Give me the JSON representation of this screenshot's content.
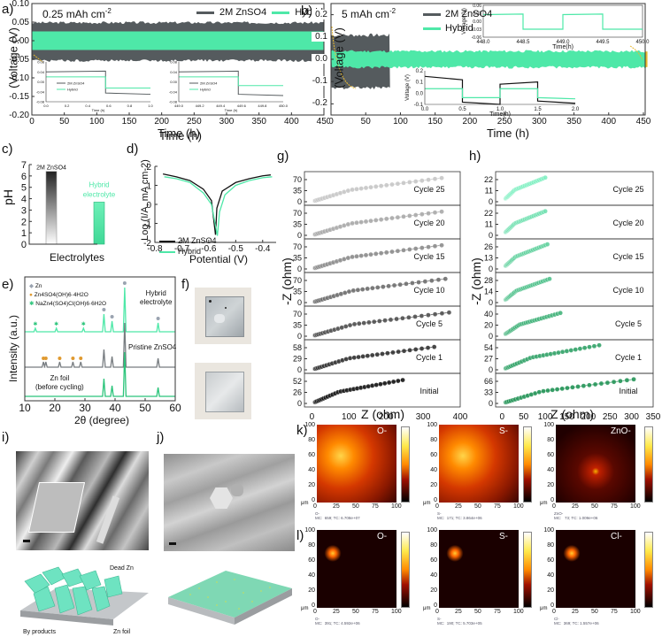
{
  "figure": {
    "panels": {
      "a": {
        "label": "a)",
        "annotation": "0.25 mAh cm",
        "annotation_sup": "-2",
        "legend": [
          "2M ZnSO4",
          "Hybrid"
        ],
        "xlabel": "Time (h)",
        "ylabel": "(Voltage (V)",
        "inset1_legend": [
          "2M ZnSO4",
          "Hybrid"
        ],
        "inset1_xlabel": "Time (h)",
        "inset1_ylabel": "Voltage (V)",
        "inset2_legend": [
          "2M ZnSO4",
          "Hybrid"
        ],
        "inset2_xlabel": "Time (h)",
        "inset2_ylabel": "Voltage (V)"
      },
      "b": {
        "label": "b)",
        "annotation": "5 mAh cm",
        "annotation_sup": "-2",
        "legend": [
          "2M ZnSO4",
          "Hybrid"
        ],
        "xlabel": "Time (h)",
        "ylabel": "(Voltage (V)",
        "inset_top_xlabel": "Time(h)",
        "inset_top_ylabel": "Voltage (V)",
        "inset_bottom_xlabel": "Time(h)",
        "inset_bottom_ylabel": "Voltage (V)"
      },
      "c": {
        "label": "c)",
        "xlabel": "Electrolytes",
        "ylabel": "pH",
        "bar_labels": [
          "2M ZnSO4",
          "Hybrid",
          "electrolyte"
        ]
      },
      "d": {
        "label": "d)",
        "xlabel": "Potential (V)",
        "ylabel": "Log (I/A, mA cm-2)",
        "legend": [
          "2M ZnSO4",
          "Hybrid"
        ]
      },
      "e": {
        "label": "e)",
        "xlabel": "2θ (degree)",
        "ylabel": "Intensity (a.u.)",
        "legend": [
          "Zn",
          "Zn4SO4(OH)6·4H2O",
          "NaZn4(SO4)Cl(OH)6·6H2O"
        ],
        "trace_labels": [
          "Hybrid",
          "electrolyte",
          "Pristine ZnSO4",
          "Zn foil",
          "(before cycling)"
        ]
      },
      "f": {
        "label": "f)"
      },
      "g": {
        "label": "g)",
        "xlabel": "Z (ohm)",
        "ylabel": "-Z (ohm)"
      },
      "h": {
        "label": "h)",
        "xlabel": "Z (ohm)",
        "ylabel": "-Z (ohm)"
      },
      "i": {
        "label": "i)",
        "annotations": [
          "Dead Zn",
          "By products",
          "Zn foil"
        ]
      },
      "j": {
        "label": "j)"
      },
      "k": {
        "label": "k)",
        "maps": [
          {
            "ion": "O-",
            "footer": "MC:  659; TC: 6.708e+07"
          },
          {
            "ion": "S-",
            "footer": "MC:  171; TC: 3.864e+06"
          },
          {
            "ion": "ZnO-",
            "footer": "MC:   73; TC: 1.009e+06"
          }
        ]
      },
      "l": {
        "label": "l)",
        "maps": [
          {
            "ion": "O-",
            "footer": "MC:  391; TC: 4.592e+06"
          },
          {
            "ion": "S-",
            "footer": "MC:  190; TC: 5.703e+05"
          },
          {
            "ion": "Cl-",
            "footer": "MC:  369; TC: 1.557e+06"
          }
        ]
      },
      "sims_axis": {
        "unit": "μm",
        "ticks": [
          "0",
          "25",
          "50",
          "75",
          "100"
        ],
        "yticks": [
          "0",
          "20",
          "40",
          "60",
          "80",
          "100"
        ]
      }
    },
    "colors": {
      "zn": "#555b5e",
      "hybrid": "#4ee8a8",
      "hybrid_dark": "#2d9e6a",
      "arrow": "#e8b830"
    }
  },
  "chart_data": [
    {
      "id": "a",
      "type": "line",
      "title": "0.25 mAh cm-2",
      "xlabel": "Time (h)",
      "ylabel": "Voltage (V)",
      "xlim": [
        0,
        450
      ],
      "ylim": [
        -0.2,
        0.1
      ],
      "xticks": [
        0,
        50,
        100,
        150,
        200,
        250,
        300,
        350,
        400,
        450
      ],
      "yticks": [
        -0.2,
        -0.15,
        -0.1,
        -0.05,
        0.0,
        0.05,
        0.1
      ],
      "series": [
        {
          "name": "2M ZnSO4",
          "band": [
            -0.05,
            0.045
          ]
        },
        {
          "name": "Hybrid",
          "band": [
            -0.025,
            0.025
          ]
        }
      ],
      "insets": [
        {
          "xlim": [
            0.0,
            1.0
          ],
          "xticks": [
            0.0,
            0.2,
            0.4,
            0.6,
            0.8,
            1.0
          ],
          "ylim": [
            -0.08,
            0.08
          ],
          "yticks": [
            -0.08,
            -0.04,
            0.0,
            0.04,
            0.08
          ],
          "series": [
            {
              "name": "2M ZnSO4",
              "upper": 0.04,
              "lower": -0.045
            },
            {
              "name": "Hybrid",
              "upper": 0.02,
              "lower": -0.025
            }
          ]
        },
        {
          "xlim": [
            449.0,
            450.0
          ],
          "xticks": [
            449.0,
            449.2,
            449.4,
            449.6,
            449.8,
            450.0
          ],
          "ylim": [
            -0.08,
            0.08
          ],
          "yticks": [
            -0.08,
            -0.04,
            0.0,
            0.04,
            0.08
          ],
          "series": [
            {
              "name": "2M ZnSO4",
              "upper": 0.04,
              "lower": -0.05
            },
            {
              "name": "Hybrid",
              "upper": 0.02,
              "lower": -0.015
            }
          ]
        }
      ]
    },
    {
      "id": "b",
      "type": "line",
      "title": "5 mAh cm-2",
      "xlabel": "Time (h)",
      "ylabel": "Voltage (V)",
      "xlim": [
        0,
        450
      ],
      "ylim": [
        -0.25,
        0.25
      ],
      "xticks": [
        0,
        50,
        100,
        150,
        200,
        250,
        300,
        350,
        400,
        450
      ],
      "yticks": [
        -0.2,
        -0.1,
        0.0,
        0.1,
        0.2
      ],
      "series": [
        {
          "name": "2M ZnSO4",
          "band": [
            -0.12,
            0.1
          ],
          "end_time": 85
        },
        {
          "name": "Hybrid",
          "band": [
            -0.03,
            0.03
          ],
          "end_time": 455
        }
      ],
      "insets": [
        {
          "xlim": [
            448.0,
            450.0
          ],
          "xticks": [
            448.0,
            448.5,
            449.0,
            449.5,
            450.0
          ],
          "ylim": [
            -0.06,
            0.06
          ],
          "yticks": [
            -0.06,
            -0.03,
            0.0,
            0.03,
            0.06
          ],
          "series": [
            {
              "name": "Hybrid",
              "upper": 0.025,
              "lower": -0.03
            }
          ]
        },
        {
          "xlim": [
            0.0,
            2.0
          ],
          "xticks": [
            0.0,
            0.5,
            1.0,
            1.5,
            2.0
          ],
          "ylim": [
            -0.1,
            0.2
          ],
          "yticks": [
            -0.1,
            0.0,
            0.1,
            0.2
          ],
          "series": [
            {
              "name": "2M ZnSO4",
              "upper": 0.12,
              "lower": -0.1
            },
            {
              "name": "Hybrid",
              "upper": 0.04,
              "lower": -0.04
            }
          ]
        }
      ]
    },
    {
      "id": "c",
      "type": "bar",
      "categories": [
        "2M ZnSO4",
        "Hybrid electrolyte"
      ],
      "values": [
        6.4,
        3.7
      ],
      "xlabel": "Electrolytes",
      "ylabel": "pH",
      "ylim": [
        0,
        7
      ],
      "yticks": [
        0,
        1,
        2,
        3,
        4,
        5,
        6,
        7
      ]
    },
    {
      "id": "d",
      "type": "line",
      "xlabel": "Potential (V)",
      "ylabel": "Log (I/A, mA cm-2)",
      "xlim": [
        -0.8,
        -0.35
      ],
      "ylim": [
        -2,
        2
      ],
      "xticks": [
        -0.8,
        -0.7,
        -0.6,
        -0.5,
        -0.4
      ],
      "yticks": [
        -2,
        -1,
        0,
        1,
        2
      ],
      "series": [
        {
          "name": "2M ZnSO4",
          "x": [
            -0.77,
            -0.72,
            -0.67,
            -0.62,
            -0.59,
            -0.575,
            -0.57,
            -0.55,
            -0.5,
            -0.45,
            -0.4,
            -0.37
          ],
          "y": [
            1.6,
            1.45,
            1.25,
            0.8,
            0.2,
            -1.6,
            -0.2,
            0.7,
            1.15,
            1.35,
            1.5,
            1.55
          ]
        },
        {
          "name": "Hybrid",
          "x": [
            -0.765,
            -0.72,
            -0.67,
            -0.62,
            -0.59,
            -0.568,
            -0.56,
            -0.54,
            -0.5,
            -0.45,
            -0.4,
            -0.365
          ],
          "y": [
            1.45,
            1.35,
            1.15,
            0.6,
            0.0,
            -1.65,
            -0.4,
            0.5,
            1.0,
            1.25,
            1.4,
            1.45
          ]
        }
      ]
    },
    {
      "id": "e",
      "type": "line",
      "xlabel": "2θ (degree)",
      "ylabel": "Intensity (a.u.)",
      "xlim": [
        10,
        60
      ],
      "xticks": [
        10,
        20,
        30,
        40,
        50,
        60
      ],
      "series": [
        {
          "name": "Hybrid electrolyte",
          "peaks": [
            13.5,
            20.5,
            29.5,
            36.3,
            39.0,
            43.2,
            54.3
          ]
        },
        {
          "name": "Pristine ZnSO4",
          "peaks": [
            16.2,
            17.0,
            21.6,
            26.0,
            28.6,
            36.3,
            39.0,
            43.2,
            54.3
          ]
        },
        {
          "name": "Zn foil (before cycling)",
          "peaks": [
            36.3,
            39.0,
            43.2,
            54.3
          ]
        }
      ]
    },
    {
      "id": "g",
      "type": "scatter",
      "xlabel": "Z (ohm)",
      "ylabel": "-Z (ohm)",
      "xlim": [
        -20,
        400
      ],
      "xticks": [
        0,
        100,
        200,
        300,
        400
      ],
      "series": [
        {
          "name": "Cycle 25",
          "yticks": [
            0,
            35,
            70
          ],
          "x_end": 350,
          "y_end": 75
        },
        {
          "name": "Cycle 20",
          "yticks": [
            0,
            35,
            70
          ],
          "x_end": 350,
          "y_end": 75
        },
        {
          "name": "Cycle 15",
          "yticks": [
            0,
            35,
            70
          ],
          "x_end": 350,
          "y_end": 75
        },
        {
          "name": "Cycle 10",
          "yticks": [
            0,
            35,
            70
          ],
          "x_end": 360,
          "y_end": 75
        },
        {
          "name": "Cycle 5",
          "yticks": [
            0,
            35,
            70
          ],
          "x_end": 370,
          "y_end": 75
        },
        {
          "name": "Cycle 1",
          "yticks": [
            0,
            29,
            58
          ],
          "x_end": 330,
          "y_end": 60
        },
        {
          "name": "Initial",
          "yticks": [
            0,
            26,
            52
          ],
          "x_end": 245,
          "y_end": 55
        }
      ]
    },
    {
      "id": "h",
      "type": "scatter",
      "xlabel": "Z (ohm)",
      "ylabel": "-Z (ohm)",
      "xlim": [
        -15,
        350
      ],
      "xticks": [
        0,
        50,
        100,
        150,
        200,
        250,
        300,
        350
      ],
      "series": [
        {
          "name": "Cycle 25",
          "yticks": [
            0,
            11,
            22
          ],
          "x_end": 100,
          "y_end": 24
        },
        {
          "name": "Cycle 20",
          "yticks": [
            0,
            11,
            22
          ],
          "x_end": 100,
          "y_end": 24
        },
        {
          "name": "Cycle 15",
          "yticks": [
            0,
            13,
            26
          ],
          "x_end": 105,
          "y_end": 29
        },
        {
          "name": "Cycle 10",
          "yticks": [
            0,
            14,
            28
          ],
          "x_end": 110,
          "y_end": 30
        },
        {
          "name": "Cycle 5",
          "yticks": [
            0,
            20,
            40
          ],
          "x_end": 135,
          "y_end": 42
        },
        {
          "name": "Cycle 1",
          "yticks": [
            0,
            27,
            54
          ],
          "x_end": 225,
          "y_end": 60
        },
        {
          "name": "Initial",
          "yticks": [
            0,
            33,
            66
          ],
          "x_end": 305,
          "y_end": 72
        }
      ]
    }
  ]
}
